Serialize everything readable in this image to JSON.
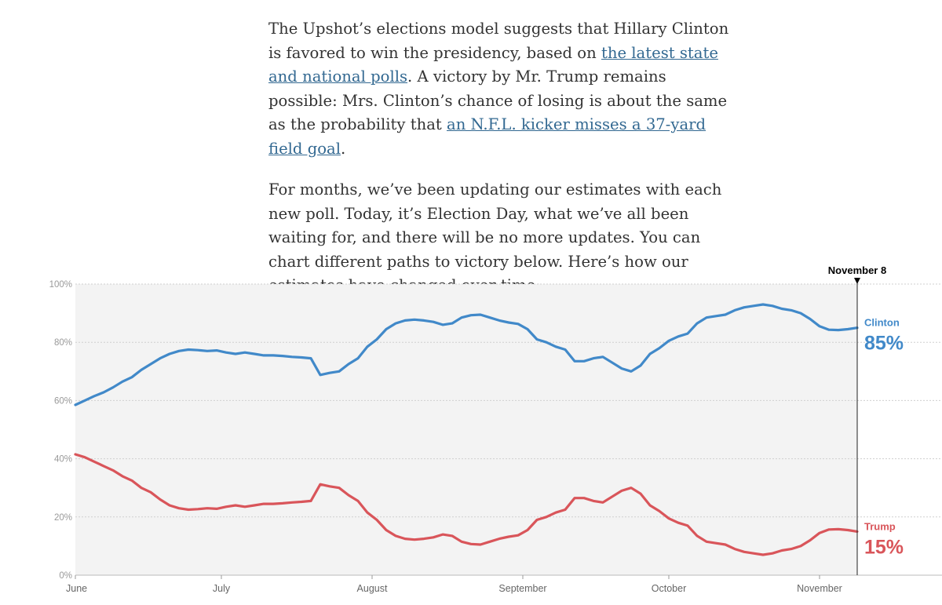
{
  "article": {
    "p1_part1": "The Upshot’s elections model suggests that Hillary Clinton is favored to win the presidency, based on ",
    "p1_link1": "the latest state and national polls",
    "p1_part2": ". A victory by Mr. Trump remains possible: Mrs. Clinton’s chance of losing is about the same as the probability that ",
    "p1_link2": "an N.F.L. kicker misses a 37-yard field goal",
    "p1_part3": ".",
    "p2": "For months, we’ve been updating our estimates with each new poll. Today, it’s Election Day, what we’ve all been waiting for, and there will be no more updates. You can chart different paths to victory below. Here’s how our estimates have changed over time:"
  },
  "colors": {
    "clinton": "#4189c9",
    "trump": "#d9555a",
    "plot_bg": "#f3f3f3"
  },
  "chart_data": {
    "type": "line",
    "title": "",
    "xlabel": "",
    "ylabel": "",
    "ylim": [
      0,
      100
    ],
    "x_domain_days": [
      0,
      166
    ],
    "y_ticks": [
      "0%",
      "20%",
      "40%",
      "60%",
      "80%",
      "100%"
    ],
    "months": [
      {
        "label": "June",
        "day": 0
      },
      {
        "label": "July",
        "day": 31
      },
      {
        "label": "August",
        "day": 63
      },
      {
        "label": "September",
        "day": 95
      },
      {
        "label": "October",
        "day": 126
      },
      {
        "label": "November",
        "day": 158
      }
    ],
    "marker": {
      "label": "November 8",
      "day": 166
    },
    "series": [
      {
        "name": "Clinton",
        "final_label": "85%",
        "points": [
          [
            0,
            58.5
          ],
          [
            2,
            60
          ],
          [
            4,
            61.5
          ],
          [
            6,
            62.8
          ],
          [
            8,
            64.5
          ],
          [
            10,
            66.5
          ],
          [
            12,
            68
          ],
          [
            14,
            70.5
          ],
          [
            16,
            72.5
          ],
          [
            18,
            74.5
          ],
          [
            20,
            76
          ],
          [
            22,
            77
          ],
          [
            24,
            77.5
          ],
          [
            26,
            77.3
          ],
          [
            28,
            77
          ],
          [
            30,
            77.2
          ],
          [
            32,
            76.5
          ],
          [
            34,
            76
          ],
          [
            36,
            76.5
          ],
          [
            38,
            76
          ],
          [
            40,
            75.5
          ],
          [
            42,
            75.5
          ],
          [
            44,
            75.3
          ],
          [
            46,
            75
          ],
          [
            48,
            74.8
          ],
          [
            50,
            74.5
          ],
          [
            52,
            68.8
          ],
          [
            54,
            69.5
          ],
          [
            56,
            70
          ],
          [
            58,
            72.5
          ],
          [
            60,
            74.5
          ],
          [
            62,
            78.5
          ],
          [
            64,
            81
          ],
          [
            66,
            84.5
          ],
          [
            68,
            86.5
          ],
          [
            70,
            87.5
          ],
          [
            72,
            87.8
          ],
          [
            74,
            87.5
          ],
          [
            76,
            87
          ],
          [
            78,
            86
          ],
          [
            80,
            86.5
          ],
          [
            82,
            88.5
          ],
          [
            84,
            89.3
          ],
          [
            86,
            89.5
          ],
          [
            88,
            88.5
          ],
          [
            90,
            87.5
          ],
          [
            92,
            86.8
          ],
          [
            94,
            86.3
          ],
          [
            96,
            84.5
          ],
          [
            98,
            81
          ],
          [
            100,
            80
          ],
          [
            102,
            78.5
          ],
          [
            104,
            77.5
          ],
          [
            106,
            73.5
          ],
          [
            108,
            73.5
          ],
          [
            110,
            74.5
          ],
          [
            112,
            75
          ],
          [
            114,
            73
          ],
          [
            116,
            71
          ],
          [
            118,
            70
          ],
          [
            120,
            72
          ],
          [
            122,
            76
          ],
          [
            124,
            78
          ],
          [
            126,
            80.5
          ],
          [
            128,
            82
          ],
          [
            130,
            83
          ],
          [
            132,
            86.5
          ],
          [
            134,
            88.5
          ],
          [
            136,
            89
          ],
          [
            138,
            89.5
          ],
          [
            140,
            91
          ],
          [
            142,
            92
          ],
          [
            144,
            92.5
          ],
          [
            146,
            93
          ],
          [
            148,
            92.5
          ],
          [
            150,
            91.5
          ],
          [
            152,
            91
          ],
          [
            154,
            90
          ],
          [
            156,
            88
          ],
          [
            158,
            85.5
          ],
          [
            160,
            84.3
          ],
          [
            162,
            84.2
          ],
          [
            164,
            84.5
          ],
          [
            166,
            85
          ]
        ]
      },
      {
        "name": "Trump",
        "final_label": "15%",
        "points": [
          [
            0,
            41.5
          ],
          [
            2,
            40.5
          ],
          [
            4,
            39
          ],
          [
            6,
            37.5
          ],
          [
            8,
            36
          ],
          [
            10,
            34
          ],
          [
            12,
            32.5
          ],
          [
            14,
            30
          ],
          [
            16,
            28.5
          ],
          [
            18,
            26
          ],
          [
            20,
            24
          ],
          [
            22,
            23
          ],
          [
            24,
            22.5
          ],
          [
            26,
            22.7
          ],
          [
            28,
            23
          ],
          [
            30,
            22.8
          ],
          [
            32,
            23.5
          ],
          [
            34,
            24
          ],
          [
            36,
            23.5
          ],
          [
            38,
            24
          ],
          [
            40,
            24.5
          ],
          [
            42,
            24.5
          ],
          [
            44,
            24.7
          ],
          [
            46,
            25
          ],
          [
            48,
            25.2
          ],
          [
            50,
            25.5
          ],
          [
            52,
            31.2
          ],
          [
            54,
            30.5
          ],
          [
            56,
            30
          ],
          [
            58,
            27.5
          ],
          [
            60,
            25.5
          ],
          [
            62,
            21.5
          ],
          [
            64,
            19
          ],
          [
            66,
            15.5
          ],
          [
            68,
            13.5
          ],
          [
            70,
            12.5
          ],
          [
            72,
            12.2
          ],
          [
            74,
            12.5
          ],
          [
            76,
            13
          ],
          [
            78,
            14
          ],
          [
            80,
            13.5
          ],
          [
            82,
            11.5
          ],
          [
            84,
            10.7
          ],
          [
            86,
            10.5
          ],
          [
            88,
            11.5
          ],
          [
            90,
            12.5
          ],
          [
            92,
            13.2
          ],
          [
            94,
            13.7
          ],
          [
            96,
            15.5
          ],
          [
            98,
            19
          ],
          [
            100,
            20
          ],
          [
            102,
            21.5
          ],
          [
            104,
            22.5
          ],
          [
            106,
            26.5
          ],
          [
            108,
            26.5
          ],
          [
            110,
            25.5
          ],
          [
            112,
            25
          ],
          [
            114,
            27
          ],
          [
            116,
            29
          ],
          [
            118,
            30
          ],
          [
            120,
            28
          ],
          [
            122,
            24
          ],
          [
            124,
            22
          ],
          [
            126,
            19.5
          ],
          [
            128,
            18
          ],
          [
            130,
            17
          ],
          [
            132,
            13.5
          ],
          [
            134,
            11.5
          ],
          [
            136,
            11
          ],
          [
            138,
            10.5
          ],
          [
            140,
            9
          ],
          [
            142,
            8
          ],
          [
            144,
            7.5
          ],
          [
            146,
            7
          ],
          [
            148,
            7.5
          ],
          [
            150,
            8.5
          ],
          [
            152,
            9
          ],
          [
            154,
            10
          ],
          [
            156,
            12
          ],
          [
            158,
            14.5
          ],
          [
            160,
            15.7
          ],
          [
            162,
            15.8
          ],
          [
            164,
            15.5
          ],
          [
            166,
            15
          ]
        ]
      }
    ]
  }
}
